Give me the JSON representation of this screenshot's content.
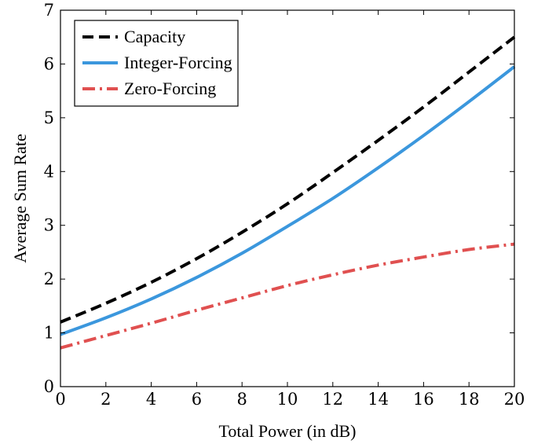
{
  "chart_data": {
    "type": "line",
    "xlabel": "Total Power (in dB)",
    "ylabel": "Average Sum Rate",
    "xlim": [
      0,
      20
    ],
    "ylim": [
      0,
      7
    ],
    "x_ticks": [
      "0",
      "2",
      "4",
      "6",
      "8",
      "10",
      "12",
      "14",
      "16",
      "18",
      "20"
    ],
    "y_ticks": [
      "0",
      "1",
      "2",
      "3",
      "4",
      "5",
      "6",
      "7"
    ],
    "grid": false,
    "legend_position": "top-left",
    "x": [
      0,
      2,
      4,
      6,
      8,
      10,
      12,
      14,
      16,
      18,
      20
    ],
    "series": [
      {
        "name": "Capacity",
        "color": "#000000",
        "style": "dashed",
        "values": [
          1.2,
          1.55,
          1.94,
          2.38,
          2.87,
          3.4,
          3.98,
          4.58,
          5.2,
          5.85,
          6.5
        ]
      },
      {
        "name": "Integer-Forcing",
        "color": "#3b97dd",
        "style": "solid",
        "values": [
          0.97,
          1.28,
          1.63,
          2.03,
          2.48,
          2.98,
          3.5,
          4.07,
          4.67,
          5.3,
          5.95
        ]
      },
      {
        "name": "Zero-Forcing",
        "color": "#e05050",
        "style": "dash-dot",
        "values": [
          0.72,
          0.95,
          1.18,
          1.42,
          1.65,
          1.88,
          2.08,
          2.26,
          2.41,
          2.55,
          2.65
        ]
      }
    ]
  }
}
